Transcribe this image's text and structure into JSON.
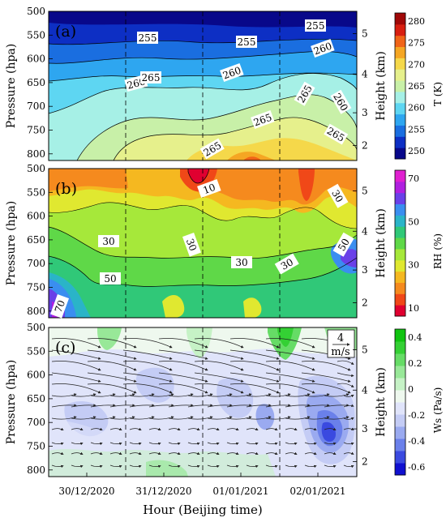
{
  "chart_data": [
    {
      "type": "heatmap",
      "panel_label": "(a)",
      "ylabel": "Pressure (hpa)",
      "y2label": "Height (km)",
      "colorbar_label": "T (K)",
      "y_ticks": [
        "500",
        "550",
        "600",
        "650",
        "700",
        "750",
        "800"
      ],
      "y2_ticks": [
        "5",
        "4",
        "3",
        "2"
      ],
      "colorbar_ticks": [
        "280",
        "275",
        "270",
        "265",
        "260",
        "255",
        "250"
      ],
      "colorbar_colors": [
        "#08088a",
        "#0d2fc4",
        "#1a6ee0",
        "#2ea6f0",
        "#5ed6f2",
        "#a6f0e6",
        "#c8f0a8",
        "#e6f08c",
        "#f5d84a",
        "#f5a623",
        "#f06418",
        "#d81e10",
        "#a00808"
      ],
      "contour_labels": [
        "255",
        "255",
        "255",
        "260",
        "260",
        "260",
        "260",
        "265",
        "265",
        "265",
        "265",
        "265"
      ]
    },
    {
      "type": "heatmap",
      "panel_label": "(b)",
      "ylabel": "Pressure (hpa)",
      "y2label": "Height (km)",
      "colorbar_label": "RH (%)",
      "y_ticks": [
        "500",
        "550",
        "600",
        "650",
        "700",
        "750",
        "800"
      ],
      "y2_ticks": [
        "5",
        "4",
        "3",
        "2"
      ],
      "colorbar_ticks": [
        "70",
        "50",
        "30",
        "10"
      ],
      "colorbar_colors": [
        "#e00030",
        "#f04818",
        "#f58a1e",
        "#f5b820",
        "#e0e830",
        "#a6e83a",
        "#5fd848",
        "#30c878",
        "#2ab4c8",
        "#3a8ef0",
        "#6a40e8",
        "#b020e0",
        "#e020d0"
      ],
      "contour_labels": [
        "10",
        "30",
        "30",
        "30",
        "30",
        "30",
        "50",
        "50",
        "70"
      ]
    },
    {
      "type": "heatmap",
      "panel_label": "(c)",
      "ylabel": "Pressure (hpa)",
      "y2label": "Height (km)",
      "colorbar_label": "Ws (Pa/s)",
      "y_ticks": [
        "500",
        "550",
        "600",
        "650",
        "700",
        "750",
        "800"
      ],
      "y2_ticks": [
        "5",
        "4",
        "3",
        "2"
      ],
      "colorbar_ticks": [
        "0.4",
        "0.2",
        "0",
        "-0.2",
        "-0.4",
        "-0.6"
      ],
      "colorbar_colors": [
        "#1010d0",
        "#3a4ae0",
        "#6a80ea",
        "#9aaaf0",
        "#c4ccf5",
        "#e0e4fa",
        "#eef8ee",
        "#c6f2c6",
        "#98e898",
        "#66dc66",
        "#34d034",
        "#10c410"
      ],
      "vector_key": {
        "value": "4",
        "unit": "m/s"
      },
      "xlabel": "Hour (Beijing time)",
      "x_ticks": [
        "30/12/2020",
        "31/12/2020",
        "01/01/2021",
        "02/01/2021"
      ]
    }
  ]
}
